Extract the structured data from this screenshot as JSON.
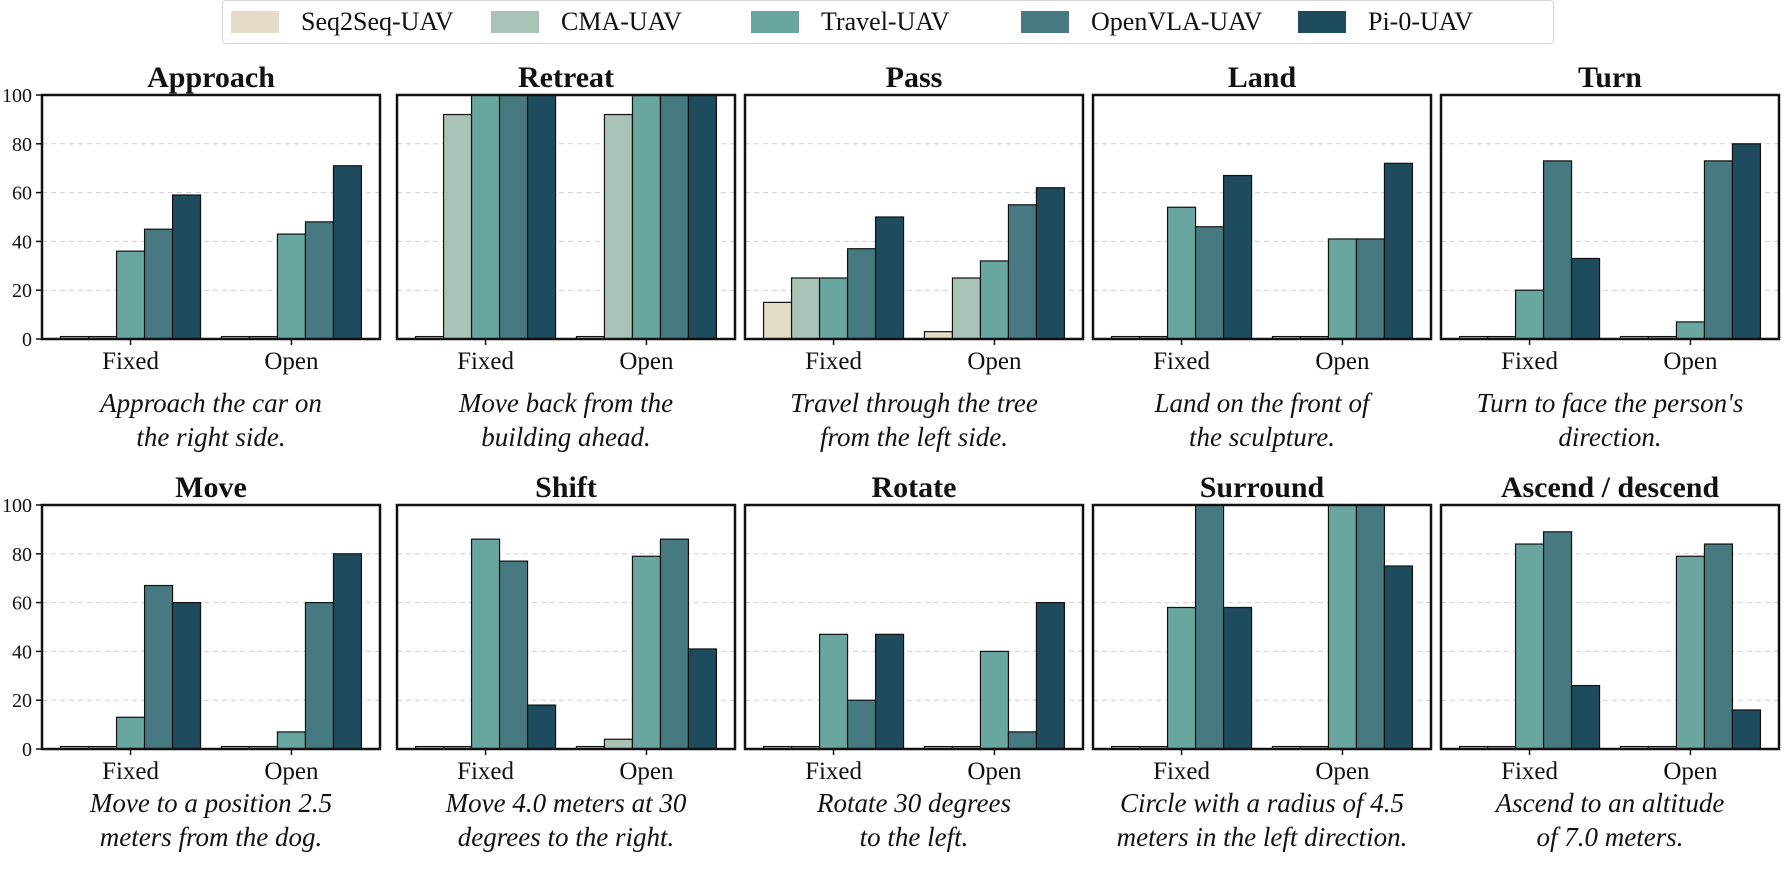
{
  "legend": [
    {
      "name": "Seq2Seq-UAV",
      "color": "#e4dcc6"
    },
    {
      "name": "CMA-UAV",
      "color": "#a8c3b6"
    },
    {
      "name": "Travel-UAV",
      "color": "#6aa6a0"
    },
    {
      "name": "OpenVLA-UAV",
      "color": "#467a80"
    },
    {
      "name": "Pi-0-UAV",
      "color": "#1f4b5e"
    }
  ],
  "chart_data": [
    {
      "type": "bar",
      "title": "Approach",
      "categories": [
        "Fixed",
        "Open"
      ],
      "caption": [
        "Approach the car on",
        "the right side."
      ],
      "ylim": [
        0,
        100
      ],
      "yticks": [
        0,
        20,
        40,
        60,
        80,
        100
      ],
      "series": [
        {
          "name": "Seq2Seq-UAV",
          "values": [
            1,
            1
          ]
        },
        {
          "name": "CMA-UAV",
          "values": [
            1,
            1
          ]
        },
        {
          "name": "Travel-UAV",
          "values": [
            36,
            43
          ]
        },
        {
          "name": "OpenVLA-UAV",
          "values": [
            45,
            48
          ]
        },
        {
          "name": "Pi-0-UAV",
          "values": [
            59,
            71
          ]
        }
      ]
    },
    {
      "type": "bar",
      "title": "Retreat",
      "categories": [
        "Fixed",
        "Open"
      ],
      "caption": [
        "Move back from the",
        "building ahead."
      ],
      "ylim": [
        0,
        100
      ],
      "yticks": [
        0,
        20,
        40,
        60,
        80,
        100
      ],
      "series": [
        {
          "name": "Seq2Seq-UAV",
          "values": [
            1,
            1
          ]
        },
        {
          "name": "CMA-UAV",
          "values": [
            92,
            92
          ]
        },
        {
          "name": "Travel-UAV",
          "values": [
            100,
            100
          ]
        },
        {
          "name": "OpenVLA-UAV",
          "values": [
            100,
            100
          ]
        },
        {
          "name": "Pi-0-UAV",
          "values": [
            100,
            100
          ]
        }
      ]
    },
    {
      "type": "bar",
      "title": "Pass",
      "categories": [
        "Fixed",
        "Open"
      ],
      "caption": [
        "Travel through the tree",
        "from the left side."
      ],
      "ylim": [
        0,
        100
      ],
      "yticks": [
        0,
        20,
        40,
        60,
        80,
        100
      ],
      "series": [
        {
          "name": "Seq2Seq-UAV",
          "values": [
            15,
            3
          ]
        },
        {
          "name": "CMA-UAV",
          "values": [
            25,
            25
          ]
        },
        {
          "name": "Travel-UAV",
          "values": [
            25,
            32
          ]
        },
        {
          "name": "OpenVLA-UAV",
          "values": [
            37,
            55
          ]
        },
        {
          "name": "Pi-0-UAV",
          "values": [
            50,
            62
          ]
        }
      ]
    },
    {
      "type": "bar",
      "title": "Land",
      "categories": [
        "Fixed",
        "Open"
      ],
      "caption": [
        "Land on the front of",
        "the sculpture."
      ],
      "ylim": [
        0,
        100
      ],
      "yticks": [
        0,
        20,
        40,
        60,
        80,
        100
      ],
      "series": [
        {
          "name": "Seq2Seq-UAV",
          "values": [
            1,
            1
          ]
        },
        {
          "name": "CMA-UAV",
          "values": [
            1,
            1
          ]
        },
        {
          "name": "Travel-UAV",
          "values": [
            54,
            41
          ]
        },
        {
          "name": "OpenVLA-UAV",
          "values": [
            46,
            41
          ]
        },
        {
          "name": "Pi-0-UAV",
          "values": [
            67,
            72
          ]
        }
      ]
    },
    {
      "type": "bar",
      "title": "Turn",
      "categories": [
        "Fixed",
        "Open"
      ],
      "caption": [
        "Turn to face the person's",
        "direction."
      ],
      "ylim": [
        0,
        100
      ],
      "yticks": [
        0,
        20,
        40,
        60,
        80,
        100
      ],
      "series": [
        {
          "name": "Seq2Seq-UAV",
          "values": [
            1,
            1
          ]
        },
        {
          "name": "CMA-UAV",
          "values": [
            1,
            1
          ]
        },
        {
          "name": "Travel-UAV",
          "values": [
            20,
            7
          ]
        },
        {
          "name": "OpenVLA-UAV",
          "values": [
            73,
            73
          ]
        },
        {
          "name": "Pi-0-UAV",
          "values": [
            33,
            80
          ]
        }
      ]
    },
    {
      "type": "bar",
      "title": "Move",
      "categories": [
        "Fixed",
        "Open"
      ],
      "caption": [
        "Move to a position 2.5",
        "meters from the dog."
      ],
      "ylim": [
        0,
        100
      ],
      "yticks": [
        0,
        20,
        40,
        60,
        80,
        100
      ],
      "series": [
        {
          "name": "Seq2Seq-UAV",
          "values": [
            1,
            1
          ]
        },
        {
          "name": "CMA-UAV",
          "values": [
            1,
            1
          ]
        },
        {
          "name": "Travel-UAV",
          "values": [
            13,
            7
          ]
        },
        {
          "name": "OpenVLA-UAV",
          "values": [
            67,
            60
          ]
        },
        {
          "name": "Pi-0-UAV",
          "values": [
            60,
            80
          ]
        }
      ]
    },
    {
      "type": "bar",
      "title": "Shift",
      "categories": [
        "Fixed",
        "Open"
      ],
      "caption": [
        "Move 4.0 meters at 30",
        "degrees to the right."
      ],
      "ylim": [
        0,
        100
      ],
      "yticks": [
        0,
        20,
        40,
        60,
        80,
        100
      ],
      "series": [
        {
          "name": "Seq2Seq-UAV",
          "values": [
            1,
            1
          ]
        },
        {
          "name": "CMA-UAV",
          "values": [
            1,
            4
          ]
        },
        {
          "name": "Travel-UAV",
          "values": [
            86,
            79
          ]
        },
        {
          "name": "OpenVLA-UAV",
          "values": [
            77,
            86
          ]
        },
        {
          "name": "Pi-0-UAV",
          "values": [
            18,
            41
          ]
        }
      ]
    },
    {
      "type": "bar",
      "title": "Rotate",
      "categories": [
        "Fixed",
        "Open"
      ],
      "caption": [
        "Rotate 30 degrees",
        "to the left."
      ],
      "ylim": [
        0,
        100
      ],
      "yticks": [
        0,
        20,
        40,
        60,
        80,
        100
      ],
      "series": [
        {
          "name": "Seq2Seq-UAV",
          "values": [
            1,
            1
          ]
        },
        {
          "name": "CMA-UAV",
          "values": [
            1,
            1
          ]
        },
        {
          "name": "Travel-UAV",
          "values": [
            47,
            40
          ]
        },
        {
          "name": "OpenVLA-UAV",
          "values": [
            20,
            7
          ]
        },
        {
          "name": "Pi-0-UAV",
          "values": [
            47,
            60
          ]
        }
      ]
    },
    {
      "type": "bar",
      "title": "Surround",
      "categories": [
        "Fixed",
        "Open"
      ],
      "caption": [
        "Circle with a radius of 4.5",
        "meters in the left direction."
      ],
      "ylim": [
        0,
        100
      ],
      "yticks": [
        0,
        20,
        40,
        60,
        80,
        100
      ],
      "series": [
        {
          "name": "Seq2Seq-UAV",
          "values": [
            1,
            1
          ]
        },
        {
          "name": "CMA-UAV",
          "values": [
            1,
            1
          ]
        },
        {
          "name": "Travel-UAV",
          "values": [
            58,
            100
          ]
        },
        {
          "name": "OpenVLA-UAV",
          "values": [
            100,
            100
          ]
        },
        {
          "name": "Pi-0-UAV",
          "values": [
            58,
            75
          ]
        }
      ]
    },
    {
      "type": "bar",
      "title": "Ascend / descend",
      "categories": [
        "Fixed",
        "Open"
      ],
      "caption": [
        "Ascend to an altitude",
        "of 7.0 meters."
      ],
      "ylim": [
        0,
        100
      ],
      "yticks": [
        0,
        20,
        40,
        60,
        80,
        100
      ],
      "series": [
        {
          "name": "Seq2Seq-UAV",
          "values": [
            1,
            1
          ]
        },
        {
          "name": "CMA-UAV",
          "values": [
            1,
            1
          ]
        },
        {
          "name": "Travel-UAV",
          "values": [
            84,
            79
          ]
        },
        {
          "name": "OpenVLA-UAV",
          "values": [
            89,
            84
          ]
        },
        {
          "name": "Pi-0-UAV",
          "values": [
            26,
            16
          ]
        }
      ]
    }
  ]
}
